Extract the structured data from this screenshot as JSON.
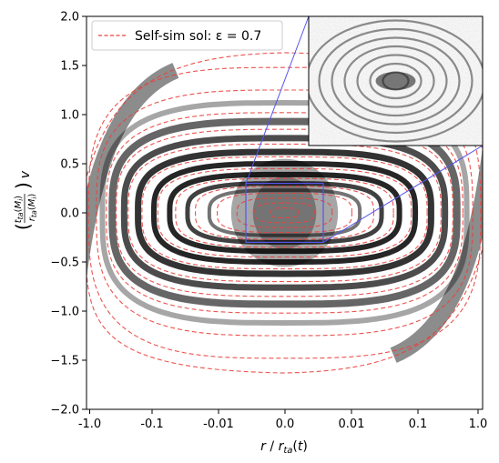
{
  "chart_data": {
    "type": "scatter",
    "title": "",
    "xlabel": "r / r_ta(t)",
    "ylabel": "(t_ta(M_i) / r_ta(M_i)) v",
    "xscale": "symlog",
    "x_ticks": [
      "-1.0",
      "-0.1",
      "-0.01",
      "0.0",
      "0.01",
      "0.1",
      "1.0"
    ],
    "y_ticks": [
      "−2.0",
      "−1.5",
      "−1.0",
      "−0.5",
      "0.0",
      "0.5",
      "1.0",
      "1.5",
      "2.0"
    ],
    "ylim": [
      -2.0,
      2.0
    ],
    "grid": false,
    "legend": {
      "position": "upper-left",
      "entries": [
        {
          "label": "Self-sim sol: ε = 0.7",
          "style": "dashed",
          "color": "#e8413c"
        }
      ]
    },
    "series": [
      {
        "name": "Self-sim sol: ε = 0.7",
        "kind": "dashed-curves",
        "color": "#e8413c",
        "loops": [
          {
            "a": 0.07,
            "b": 0.05
          },
          {
            "a": 0.15,
            "b": 0.1
          },
          {
            "a": 0.24,
            "b": 0.15
          },
          {
            "a": 0.34,
            "b": 0.2
          },
          {
            "a": 0.45,
            "b": 0.27
          },
          {
            "a": 0.55,
            "b": 0.35
          },
          {
            "a": 0.64,
            "b": 0.45
          },
          {
            "a": 0.72,
            "b": 0.57
          },
          {
            "a": 0.79,
            "b": 0.7
          },
          {
            "a": 0.85,
            "b": 0.85
          },
          {
            "a": 0.9,
            "b": 1.02
          },
          {
            "a": 0.95,
            "b": 1.25
          },
          {
            "a": 0.99,
            "b": 1.48
          }
        ]
      },
      {
        "name": "",
        "kind": "particles",
        "color": "#000000"
      }
    ],
    "zoom_region": {
      "x": [
        -0.06,
        0.06
      ],
      "y": [
        -0.3,
        0.3
      ],
      "color": "#5555ee"
    },
    "colors": {
      "curve": "#e8413c",
      "particles": "#000000",
      "zoom": "#5555ee"
    }
  }
}
